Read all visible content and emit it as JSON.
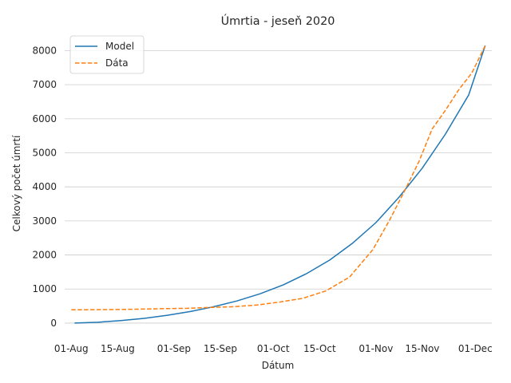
{
  "chart_data": {
    "type": "line",
    "title": "Úmrtia - jeseň 2020",
    "xlabel": "Dátum",
    "ylabel": "Celkový počet úmrtí",
    "x_tick_labels": [
      "01-Aug",
      "15-Aug",
      "01-Sep",
      "15-Sep",
      "01-Oct",
      "15-Oct",
      "01-Nov",
      "15-Nov",
      "01-Dec"
    ],
    "x_tick_dates": [
      "2020-08-01",
      "2020-08-15",
      "2020-09-01",
      "2020-09-15",
      "2020-10-01",
      "2020-10-15",
      "2020-11-01",
      "2020-11-15",
      "2020-12-01"
    ],
    "y_ticks": [
      0,
      1000,
      2000,
      3000,
      4000,
      5000,
      6000,
      7000,
      8000
    ],
    "xlim": [
      "2020-07-30",
      "2020-12-06"
    ],
    "ylim": [
      -400,
      8550
    ],
    "grid": "horizontal",
    "legend": "top-left",
    "series": [
      {
        "name": "Model",
        "color": "#1f77b4",
        "style": "solid",
        "points": [
          [
            "2020-08-02",
            0
          ],
          [
            "2020-08-09",
            25
          ],
          [
            "2020-08-16",
            75
          ],
          [
            "2020-08-23",
            140
          ],
          [
            "2020-08-30",
            230
          ],
          [
            "2020-09-06",
            340
          ],
          [
            "2020-09-13",
            480
          ],
          [
            "2020-09-20",
            650
          ],
          [
            "2020-09-27",
            860
          ],
          [
            "2020-10-04",
            1120
          ],
          [
            "2020-10-11",
            1450
          ],
          [
            "2020-10-18",
            1850
          ],
          [
            "2020-10-25",
            2350
          ],
          [
            "2020-11-01",
            2950
          ],
          [
            "2020-11-08",
            3700
          ],
          [
            "2020-11-15",
            4550
          ],
          [
            "2020-11-22",
            5550
          ],
          [
            "2020-11-29",
            6700
          ],
          [
            "2020-12-04",
            8150
          ]
        ]
      },
      {
        "name": "Dáta",
        "color": "#ff7f0e",
        "style": "dashed",
        "points": [
          [
            "2020-08-01",
            390
          ],
          [
            "2020-08-08",
            395
          ],
          [
            "2020-08-15",
            400
          ],
          [
            "2020-08-22",
            410
          ],
          [
            "2020-08-29",
            425
          ],
          [
            "2020-09-05",
            435
          ],
          [
            "2020-09-12",
            460
          ],
          [
            "2020-09-19",
            480
          ],
          [
            "2020-09-26",
            530
          ],
          [
            "2020-10-03",
            620
          ],
          [
            "2020-10-10",
            730
          ],
          [
            "2020-10-17",
            950
          ],
          [
            "2020-10-24",
            1350
          ],
          [
            "2020-10-31",
            2150
          ],
          [
            "2020-11-05",
            3000
          ],
          [
            "2020-11-10",
            3950
          ],
          [
            "2020-11-14",
            4750
          ],
          [
            "2020-11-18",
            5700
          ],
          [
            "2020-11-22",
            6250
          ],
          [
            "2020-11-26",
            6850
          ],
          [
            "2020-11-30",
            7350
          ],
          [
            "2020-12-04",
            8150
          ]
        ]
      }
    ]
  }
}
